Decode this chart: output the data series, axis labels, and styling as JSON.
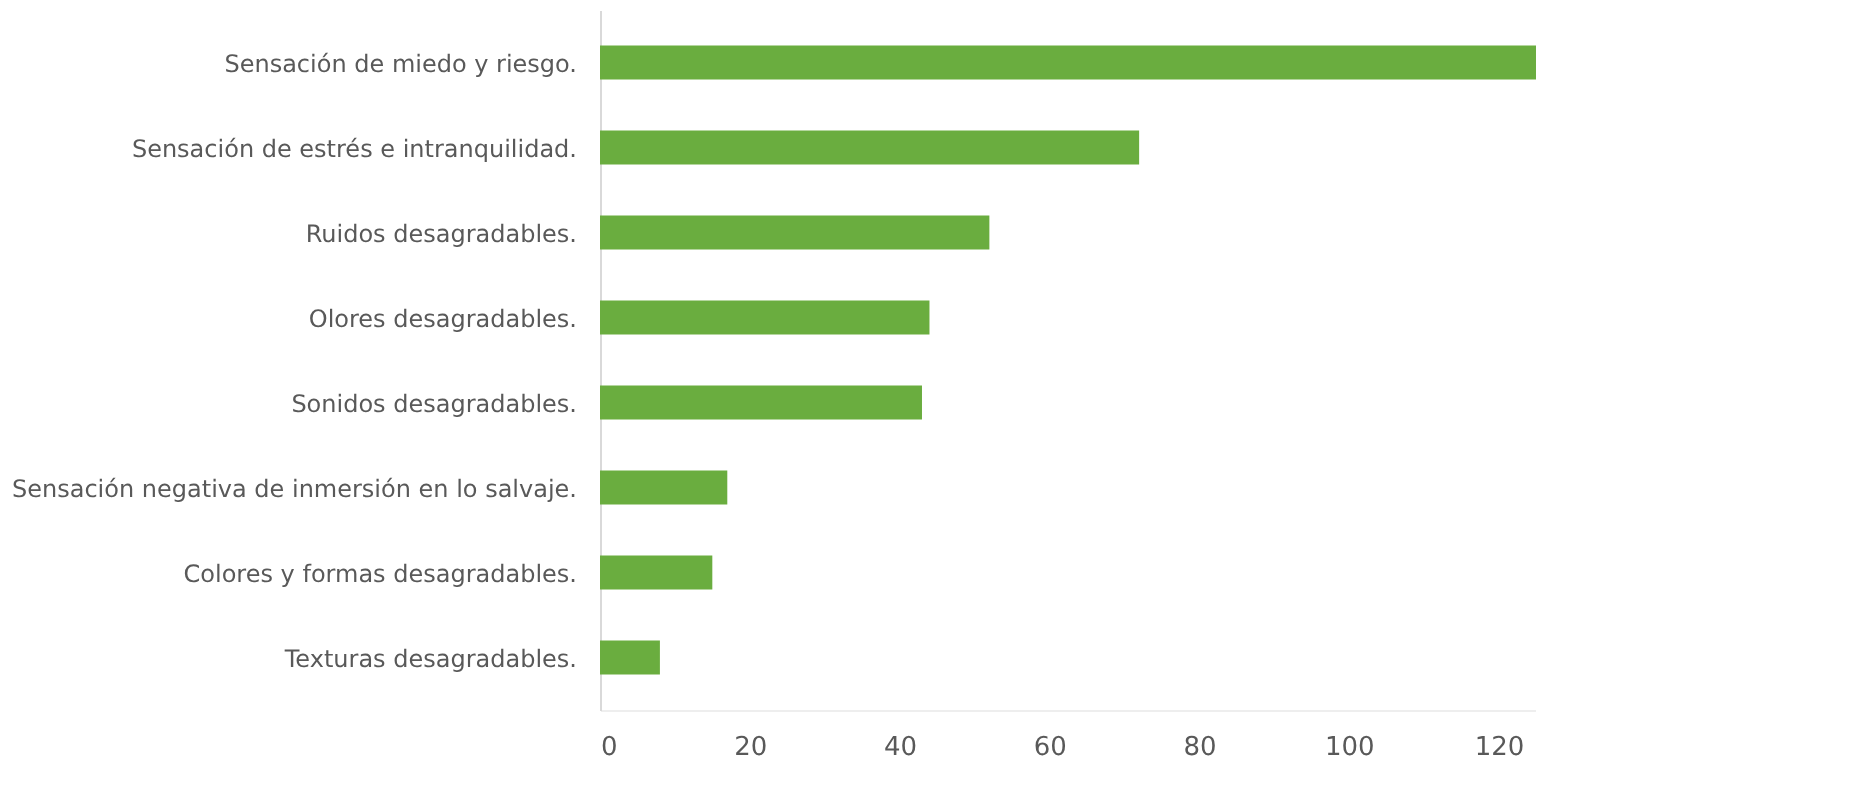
{
  "chart_data": {
    "type": "bar",
    "orientation": "horizontal",
    "categories": [
      "Sensación de miedo y riesgo.",
      "Sensación de estrés e intranquilidad.",
      "Ruidos desagradables.",
      "Olores desagradables.",
      "Sonidos desagradables.",
      "Sensación negativa de inmersión en lo salvaje.",
      "Colores y formas desagradables.",
      "Texturas desagradables."
    ],
    "values": [
      125,
      72,
      52,
      44,
      43,
      17,
      15,
      8
    ],
    "color": "#6aad3f",
    "xlim": [
      0,
      125
    ],
    "xticks": [
      0,
      20,
      40,
      60,
      80,
      100,
      120
    ],
    "grid": false
  }
}
